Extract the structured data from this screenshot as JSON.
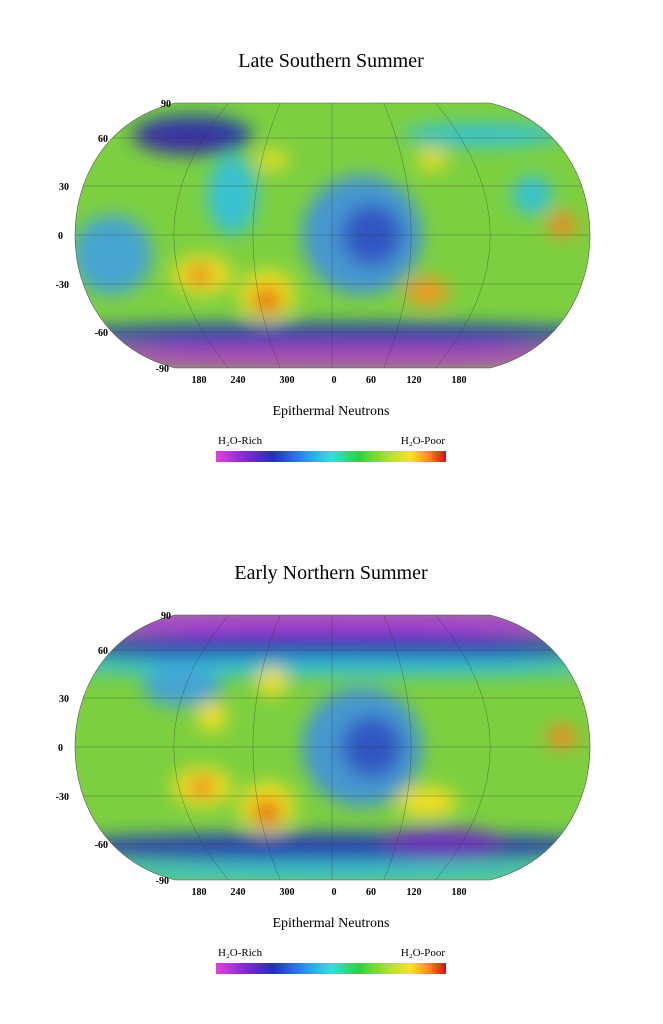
{
  "panels": [
    {
      "title": "Late Southern Summer",
      "lat_labels": [
        "90",
        "60",
        "30",
        "0",
        "-30",
        "-60",
        "-90"
      ],
      "lon_labels": [
        "180",
        "240",
        "300",
        "0",
        "60",
        "120",
        "180"
      ],
      "caption": "Epithermal Neutrons",
      "legend": {
        "low": "H₂O-Rich",
        "high": "H₂O-Poor"
      }
    },
    {
      "title": "Early Northern Summer",
      "lat_labels": [
        "90",
        "60",
        "30",
        "0",
        "-30",
        "-60",
        "-90"
      ],
      "lon_labels": [
        "180",
        "240",
        "300",
        "0",
        "60",
        "120",
        "180"
      ],
      "caption": "Epithermal Neutrons",
      "legend": {
        "low": "H₂O-Rich",
        "high": "H₂O-Poor"
      }
    }
  ]
}
